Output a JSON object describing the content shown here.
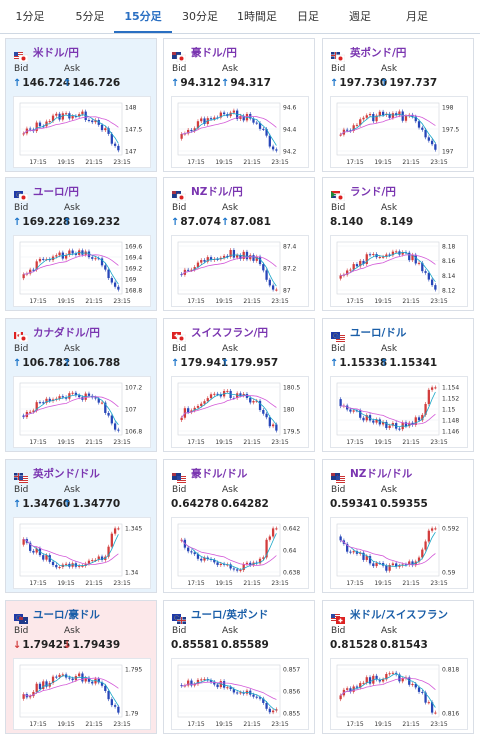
{
  "tabs": [
    {
      "label": "1分足",
      "active": false
    },
    {
      "label": "5分足",
      "active": false
    },
    {
      "label": "15分足",
      "active": true
    },
    {
      "label": "30分足",
      "active": false
    },
    {
      "label": "1時間足",
      "active": false
    },
    {
      "label": "日足",
      "active": false
    },
    {
      "label": "週足",
      "active": false
    },
    {
      "label": "月足",
      "active": false
    }
  ],
  "labels": {
    "bid": "Bid",
    "ask": "Ask"
  },
  "colors": {
    "up": "#1a73c9",
    "down": "#d23c3c",
    "candle_up": "#d23c3c",
    "candle_down": "#2746b8",
    "ma_short": "#1aa7c8",
    "ma_long": "#d35ad8",
    "pair_purple": "#7a35b0",
    "pair_blue": "#1a5ea8"
  },
  "cards": [
    {
      "pair": "米ドル/円",
      "flag": "us-jp",
      "tint": "blue",
      "color": "purple",
      "bid_dir": "up",
      "bid": "146.724",
      "ask_dir": "up",
      "ask": "146.726",
      "chart_data": {
        "type": "candlestick",
        "x_ticks": [
          "17:15",
          "19:15",
          "21:15",
          "23:15"
        ],
        "y_ticks": [
          "148",
          "147.5",
          "147"
        ],
        "ylim": [
          146.6,
          148.1
        ],
        "trend": "up-then-down"
      }
    },
    {
      "pair": "豪ドル/円",
      "flag": "au-jp",
      "tint": "none",
      "color": "purple",
      "bid_dir": "up",
      "bid": "94.312",
      "ask_dir": "up",
      "ask": "94.317",
      "chart_data": {
        "type": "candlestick",
        "x_ticks": [
          "17:15",
          "19:15",
          "21:15",
          "23:15"
        ],
        "y_ticks": [
          "94.6",
          "94.4",
          "94.2"
        ],
        "ylim": [
          94.1,
          94.7
        ],
        "trend": "up-then-down"
      }
    },
    {
      "pair": "英ポンド/円",
      "flag": "gb-jp",
      "tint": "none",
      "color": "purple",
      "bid_dir": "up",
      "bid": "197.730",
      "ask_dir": "up",
      "ask": "197.737",
      "chart_data": {
        "type": "candlestick",
        "x_ticks": [
          "17:15",
          "19:15",
          "21:15",
          "23:15"
        ],
        "y_ticks": [
          "198",
          "197.5",
          "197"
        ],
        "ylim": [
          196.9,
          198.1
        ],
        "trend": "up-then-down"
      }
    },
    {
      "pair": "ユーロ/円",
      "flag": "eu-jp",
      "tint": "blue",
      "color": "purple",
      "bid_dir": "up",
      "bid": "169.228",
      "ask_dir": "up",
      "ask": "169.232",
      "chart_data": {
        "type": "candlestick",
        "x_ticks": [
          "17:15",
          "19:15",
          "21:15",
          "23:15"
        ],
        "y_ticks": [
          "169.6",
          "169.4",
          "169.2",
          "169",
          "168.8"
        ],
        "ylim": [
          168.7,
          169.7
        ],
        "trend": "up-then-down"
      }
    },
    {
      "pair": "NZドル/円",
      "flag": "nz-jp",
      "tint": "none",
      "color": "purple",
      "bid_dir": "up",
      "bid": "87.074",
      "ask_dir": "up",
      "ask": "87.081",
      "chart_data": {
        "type": "candlestick",
        "x_ticks": [
          "17:15",
          "19:15",
          "21:15",
          "23:15"
        ],
        "y_ticks": [
          "87.4",
          "87.2",
          "87"
        ],
        "ylim": [
          86.9,
          87.45
        ],
        "trend": "up-then-down"
      }
    },
    {
      "pair": "ランド/円",
      "flag": "za-jp",
      "tint": "none",
      "color": "purple",
      "bid_dir": "none",
      "bid": "8.140",
      "ask_dir": "none",
      "ask": "8.149",
      "chart_data": {
        "type": "candlestick",
        "x_ticks": [
          "17:15",
          "19:15",
          "21:15",
          "23:15"
        ],
        "y_ticks": [
          "8.18",
          "8.16",
          "8.14",
          "8.12"
        ],
        "ylim": [
          8.115,
          8.185
        ],
        "trend": "up-then-down"
      }
    },
    {
      "pair": "カナダドル/円",
      "flag": "ca-jp",
      "tint": "blue",
      "color": "purple",
      "bid_dir": "up",
      "bid": "106.782",
      "ask_dir": "up",
      "ask": "106.788",
      "chart_data": {
        "type": "candlestick",
        "x_ticks": [
          "17:15",
          "19:15",
          "21:15",
          "23:15"
        ],
        "y_ticks": [
          "107.2",
          "107",
          "106.8"
        ],
        "ylim": [
          106.7,
          107.3
        ],
        "trend": "up-then-down"
      }
    },
    {
      "pair": "スイスフラン/円",
      "flag": "ch-jp",
      "tint": "none",
      "color": "purple",
      "bid_dir": "up",
      "bid": "179.941",
      "ask_dir": "up",
      "ask": "179.957",
      "chart_data": {
        "type": "candlestick",
        "x_ticks": [
          "17:15",
          "19:15",
          "21:15",
          "23:15"
        ],
        "y_ticks": [
          "180.5",
          "180",
          "179.5"
        ],
        "ylim": [
          179.3,
          180.7
        ],
        "trend": "up-then-down"
      }
    },
    {
      "pair": "ユーロ/ドル",
      "flag": "eu-us",
      "tint": "none",
      "color": "blue",
      "bid_dir": "up",
      "bid": "1.15338",
      "ask_dir": "up",
      "ask": "1.15341",
      "chart_data": {
        "type": "candlestick",
        "x_ticks": [
          "17:15",
          "19:15",
          "21:15",
          "23:15"
        ],
        "y_ticks": [
          "1.154",
          "1.152",
          "1.15",
          "1.148",
          "1.146"
        ],
        "ylim": [
          1.145,
          1.155
        ],
        "trend": "down-then-up"
      }
    },
    {
      "pair": "英ポンド/ドル",
      "flag": "gb-us",
      "tint": "blue",
      "color": "purple",
      "bid_dir": "up",
      "bid": "1.34760",
      "ask_dir": "up",
      "ask": "1.34770",
      "chart_data": {
        "type": "candlestick",
        "x_ticks": [
          "17:15",
          "19:15",
          "21:15",
          "23:15"
        ],
        "y_ticks": [
          "1.345",
          "1.34"
        ],
        "ylim": [
          1.336,
          1.348
        ],
        "trend": "down-then-up"
      }
    },
    {
      "pair": "豪ドル/ドル",
      "flag": "au-us",
      "tint": "none",
      "color": "purple",
      "bid_dir": "none",
      "bid": "0.64278",
      "ask_dir": "none",
      "ask": "0.64282",
      "chart_data": {
        "type": "candlestick",
        "x_ticks": [
          "17:15",
          "19:15",
          "21:15",
          "23:15"
        ],
        "y_ticks": [
          "0.642",
          "0.64",
          "0.638"
        ],
        "ylim": [
          0.6375,
          0.643
        ],
        "trend": "down-then-up"
      }
    },
    {
      "pair": "NZドル/ドル",
      "flag": "nz-us",
      "tint": "none",
      "color": "purple",
      "bid_dir": "none",
      "bid": "0.59341",
      "ask_dir": "none",
      "ask": "0.59355",
      "chart_data": {
        "type": "candlestick",
        "x_ticks": [
          "17:15",
          "19:15",
          "21:15",
          "23:15"
        ],
        "y_ticks": [
          "0.592",
          "0.59"
        ],
        "ylim": [
          0.5885,
          0.5935
        ],
        "trend": "down-then-up"
      }
    },
    {
      "pair": "ユーロ/豪ドル",
      "flag": "eu-au",
      "tint": "red",
      "color": "blue",
      "bid_dir": "down",
      "bid": "1.79425",
      "ask_dir": "down",
      "ask": "1.79439",
      "chart_data": {
        "type": "candlestick",
        "x_ticks": [
          "17:15",
          "19:15",
          "21:15",
          "23:15"
        ],
        "y_ticks": [
          "1.795",
          "1.79"
        ],
        "ylim": [
          1.7885,
          1.7975
        ],
        "trend": "up-then-down"
      }
    },
    {
      "pair": "ユーロ/英ポンド",
      "flag": "eu-gb",
      "tint": "none",
      "color": "blue",
      "bid_dir": "none",
      "bid": "0.85581",
      "ask_dir": "none",
      "ask": "0.85589",
      "chart_data": {
        "type": "candlestick",
        "x_ticks": [
          "17:15",
          "19:15",
          "21:15",
          "23:15"
        ],
        "y_ticks": [
          "0.857",
          "0.856",
          "0.855"
        ],
        "ylim": [
          0.8547,
          0.8575
        ],
        "trend": "flat-then-down"
      }
    },
    {
      "pair": "米ドル/スイスフラン",
      "flag": "us-ch",
      "tint": "none",
      "color": "blue",
      "bid_dir": "none",
      "bid": "0.81528",
      "ask_dir": "none",
      "ask": "0.81543",
      "chart_data": {
        "type": "candlestick",
        "x_ticks": [
          "17:15",
          "19:15",
          "21:15",
          "23:15"
        ],
        "y_ticks": [
          "0.818",
          "0.816"
        ],
        "ylim": [
          0.815,
          0.819
        ],
        "trend": "up-then-down"
      }
    }
  ]
}
